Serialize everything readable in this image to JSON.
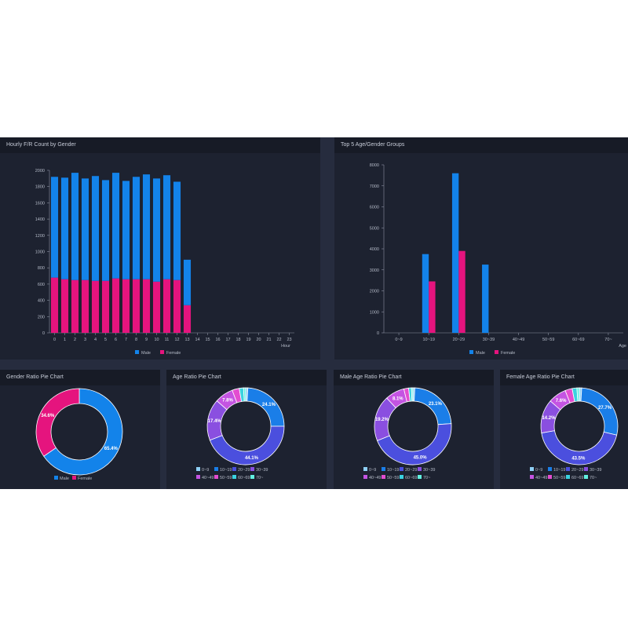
{
  "colors": {
    "male": "#1383ea",
    "female": "#e5147e",
    "age_colors": [
      "#8fd0f5",
      "#1a7ee8",
      "#4b4fde",
      "#8a4fe0",
      "#c454e2",
      "#e34dd0",
      "#3ad2e0",
      "#62f0e0"
    ]
  },
  "chart_data": [
    {
      "type": "bar",
      "title": "Hourly F/R Count by Gender",
      "xlabel": "Hour",
      "ylabel": "",
      "stacked": true,
      "categories": [
        "0",
        "1",
        "2",
        "3",
        "4",
        "5",
        "6",
        "7",
        "8",
        "9",
        "10",
        "11",
        "12",
        "13",
        "14",
        "15",
        "16",
        "17",
        "18",
        "19",
        "20",
        "21",
        "22",
        "23"
      ],
      "series": [
        {
          "name": "Male",
          "color": "#1383ea",
          "values": [
            1240,
            1250,
            1320,
            1250,
            1290,
            1240,
            1300,
            1210,
            1260,
            1290,
            1270,
            1280,
            1210,
            560,
            0,
            0,
            0,
            0,
            0,
            0,
            0,
            0,
            0,
            0
          ]
        },
        {
          "name": "Female",
          "color": "#e5147e",
          "values": [
            680,
            660,
            650,
            650,
            640,
            640,
            670,
            660,
            660,
            660,
            630,
            660,
            650,
            340,
            0,
            0,
            0,
            0,
            0,
            0,
            0,
            0,
            0,
            0
          ]
        }
      ],
      "ylim": [
        0,
        2000
      ],
      "yticks": [
        0,
        200,
        400,
        600,
        800,
        1000,
        1200,
        1400,
        1600,
        1800,
        2000
      ],
      "legend_position": "bottom"
    },
    {
      "type": "bar",
      "title": "Top 5 Age/Gender Groups",
      "xlabel": "Age",
      "ylabel": "",
      "stacked": false,
      "categories": [
        "0~9",
        "10~19",
        "20~29",
        "30~39",
        "40~49",
        "50~59",
        "60~69",
        "70~"
      ],
      "series": [
        {
          "name": "Male",
          "color": "#1383ea",
          "values": [
            0,
            3750,
            7600,
            3250,
            0,
            0,
            0,
            0
          ]
        },
        {
          "name": "Female",
          "color": "#e5147e",
          "values": [
            0,
            2450,
            3900,
            0,
            0,
            0,
            0,
            0
          ]
        }
      ],
      "ylim": [
        0,
        8000
      ],
      "yticks": [
        0,
        1000,
        2000,
        3000,
        4000,
        5000,
        6000,
        7000,
        8000
      ],
      "legend_position": "bottom"
    },
    {
      "type": "pie",
      "donut": true,
      "title": "Gender Ratio Pie Chart",
      "labels": [
        "Male",
        "Female"
      ],
      "values": [
        65.4,
        34.6
      ],
      "value_labels": [
        "65.4%",
        "34.6%"
      ],
      "colors": [
        "#1383ea",
        "#e5147e"
      ],
      "legend_position": "bottom"
    },
    {
      "type": "pie",
      "donut": true,
      "title": "Age Ratio Pie Chart",
      "labels": [
        "0~9",
        "10~19",
        "20~29",
        "30~39",
        "40~49",
        "50~59",
        "60~69",
        "70~"
      ],
      "values": [
        0.9,
        24.1,
        44.1,
        17.4,
        7.8,
        3.0,
        1.8,
        0.9
      ],
      "value_labels": [
        "",
        "24.1%",
        "44.1%",
        "17.4%",
        "7.8%",
        "",
        "",
        ""
      ],
      "legend_position": "bottom"
    },
    {
      "type": "pie",
      "donut": true,
      "title": "Male Age Ratio Pie Chart",
      "labels": [
        "0~9",
        "10~19",
        "20~29",
        "30~39",
        "40~49",
        "50~59",
        "60~69",
        "70~"
      ],
      "values": [
        0.8,
        23.1,
        45.0,
        19.2,
        8.1,
        2.0,
        1.2,
        0.6
      ],
      "value_labels": [
        "",
        "23.1%",
        "45.0%",
        "19.2%",
        "8.1%",
        "",
        "",
        ""
      ],
      "legend_position": "bottom"
    },
    {
      "type": "pie",
      "donut": true,
      "title": "Female Age Ratio Pie Chart",
      "labels": [
        "0~9",
        "10~19",
        "20~29",
        "30~39",
        "40~49",
        "50~59",
        "60~69",
        "70~"
      ],
      "values": [
        1.0,
        27.7,
        43.5,
        14.2,
        7.6,
        3.0,
        2.0,
        1.0
      ],
      "value_labels": [
        "",
        "27.7%",
        "43.5%",
        "14.2%",
        "7.6%",
        "",
        "",
        ""
      ],
      "legend_position": "bottom"
    }
  ]
}
